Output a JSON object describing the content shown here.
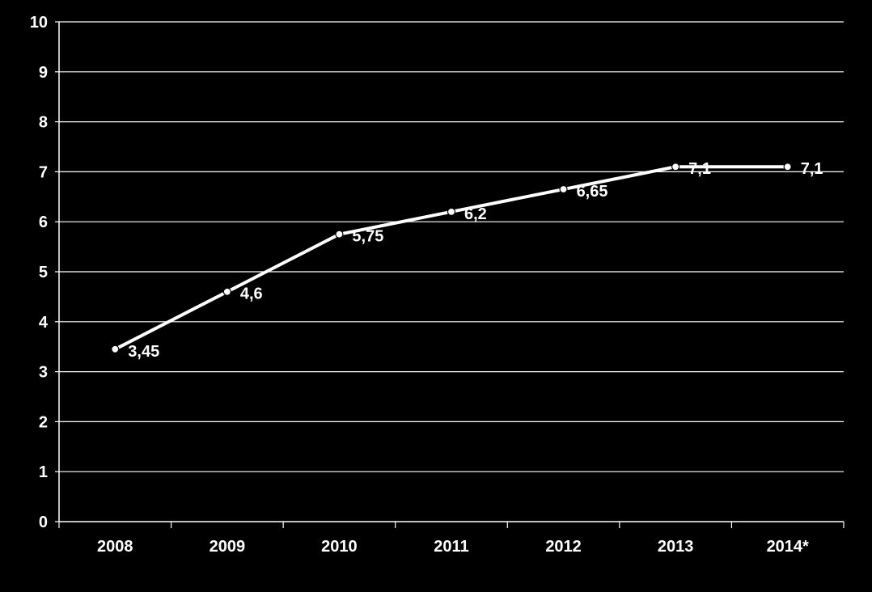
{
  "chart_data": {
    "type": "line",
    "title": "",
    "xlabel": "",
    "ylabel": "",
    "categories": [
      "2008",
      "2009",
      "2010",
      "2011",
      "2012",
      "2013",
      "2014*"
    ],
    "series": [
      {
        "name": "",
        "values": [
          3.45,
          4.6,
          5.75,
          6.2,
          6.65,
          7.1,
          7.1
        ],
        "data_labels": [
          "3,45",
          "4,6",
          "5,75",
          "6,2",
          "6,65",
          "7,1",
          "7,1"
        ]
      }
    ],
    "ylim": [
      0,
      10
    ],
    "yticks": [
      "0",
      "1",
      "2",
      "3",
      "4",
      "5",
      "6",
      "7",
      "8",
      "9",
      "10"
    ],
    "grid": true,
    "legend": "none",
    "colors": {
      "background": "#000000",
      "line": "#ffffff",
      "grid": "#ffffff",
      "text": "#ffffff"
    }
  }
}
